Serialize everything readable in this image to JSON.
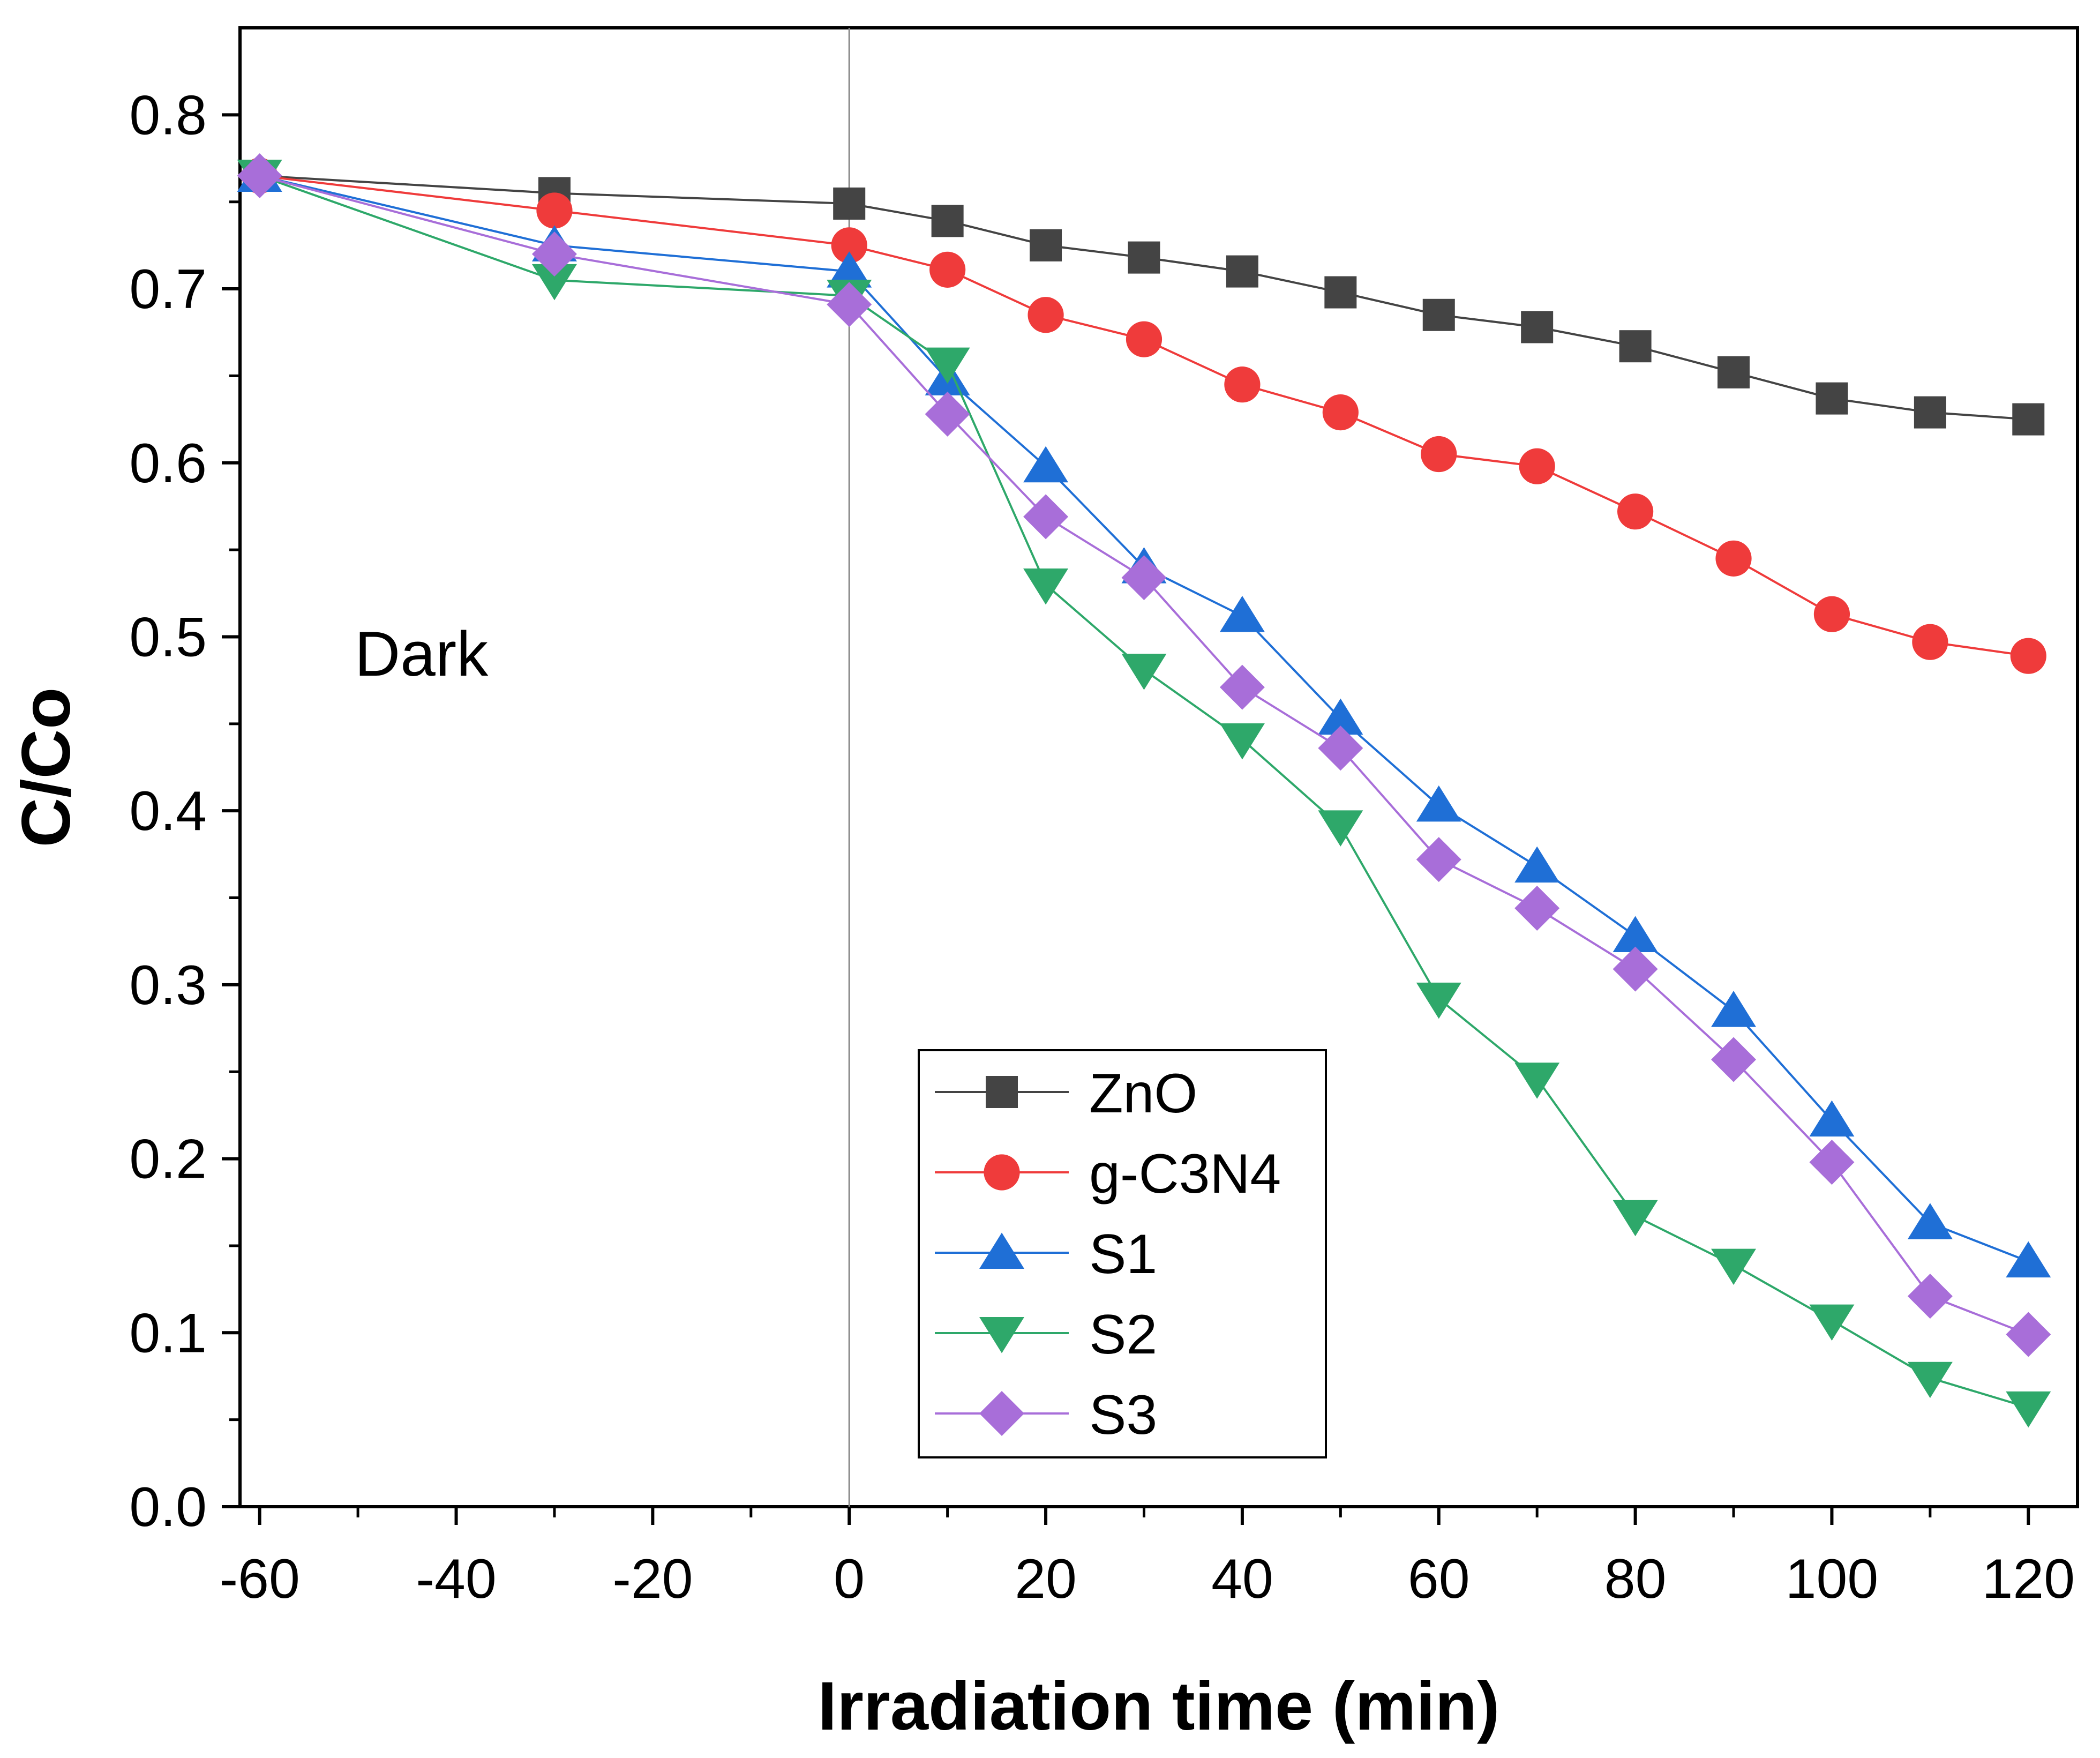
{
  "chart_data": {
    "type": "line",
    "title": "",
    "xlabel": "Irradiation time (min)",
    "ylabel": "C/Co",
    "xlim": [
      -62,
      125
    ],
    "ylim": [
      0.0,
      0.85
    ],
    "xticks": [
      -60,
      -40,
      -20,
      0,
      20,
      40,
      60,
      80,
      100,
      120
    ],
    "xtick_labels": [
      "-60",
      "-40",
      "-20",
      "0",
      "20",
      "40",
      "60",
      "80",
      "100",
      "120"
    ],
    "yticks": [
      0.0,
      0.1,
      0.2,
      0.3,
      0.4,
      0.5,
      0.6,
      0.7,
      0.8
    ],
    "ytick_labels": [
      "0.0",
      "0.1",
      "0.2",
      "0.3",
      "0.4",
      "0.5",
      "0.6",
      "0.7",
      "0.8"
    ],
    "grid": false,
    "legend_position": "bottom-center",
    "annotations": [
      {
        "text": "Dark",
        "x": -42,
        "y": 0.49
      },
      {
        "type": "vline",
        "x": 0
      }
    ],
    "series": [
      {
        "name": "ZnO",
        "color": "#444444",
        "marker": "square",
        "x": [
          -60,
          -30,
          0,
          10,
          20,
          30,
          40,
          50,
          60,
          70,
          80,
          90,
          100,
          110,
          120
        ],
        "values": [
          0.765,
          0.755,
          0.749,
          0.739,
          0.725,
          0.718,
          0.71,
          0.698,
          0.685,
          0.678,
          0.667,
          0.652,
          0.637,
          0.629,
          0.625
        ]
      },
      {
        "name": "g-C3N4",
        "color": "#ef3b3b",
        "marker": "circle",
        "x": [
          -60,
          -30,
          0,
          10,
          20,
          30,
          40,
          50,
          60,
          70,
          80,
          90,
          100,
          110,
          120
        ],
        "values": [
          0.765,
          0.745,
          0.725,
          0.711,
          0.685,
          0.671,
          0.645,
          0.629,
          0.605,
          0.598,
          0.572,
          0.545,
          0.513,
          0.497,
          0.489
        ]
      },
      {
        "name": "S1",
        "color": "#1f6fd6",
        "marker": "triangle-up",
        "x": [
          -60,
          -30,
          0,
          10,
          20,
          30,
          40,
          50,
          60,
          70,
          80,
          90,
          100,
          110,
          120
        ],
        "values": [
          0.765,
          0.725,
          0.71,
          0.648,
          0.598,
          0.54,
          0.512,
          0.453,
          0.403,
          0.368,
          0.328,
          0.285,
          0.222,
          0.163,
          0.141
        ]
      },
      {
        "name": "S2",
        "color": "#2ea86a",
        "marker": "triangle-down",
        "x": [
          -60,
          -30,
          0,
          10,
          20,
          30,
          40,
          50,
          60,
          70,
          80,
          90,
          100,
          110,
          120
        ],
        "values": [
          0.765,
          0.705,
          0.696,
          0.657,
          0.53,
          0.481,
          0.441,
          0.391,
          0.292,
          0.246,
          0.167,
          0.139,
          0.107,
          0.074,
          0.057
        ]
      },
      {
        "name": "S3",
        "color": "#a86ed9",
        "marker": "diamond",
        "x": [
          -60,
          -30,
          0,
          10,
          20,
          30,
          40,
          50,
          60,
          70,
          80,
          90,
          100,
          110,
          120
        ],
        "values": [
          0.765,
          0.72,
          0.691,
          0.628,
          0.569,
          0.534,
          0.471,
          0.436,
          0.372,
          0.344,
          0.309,
          0.257,
          0.198,
          0.121,
          0.099
        ]
      }
    ]
  }
}
